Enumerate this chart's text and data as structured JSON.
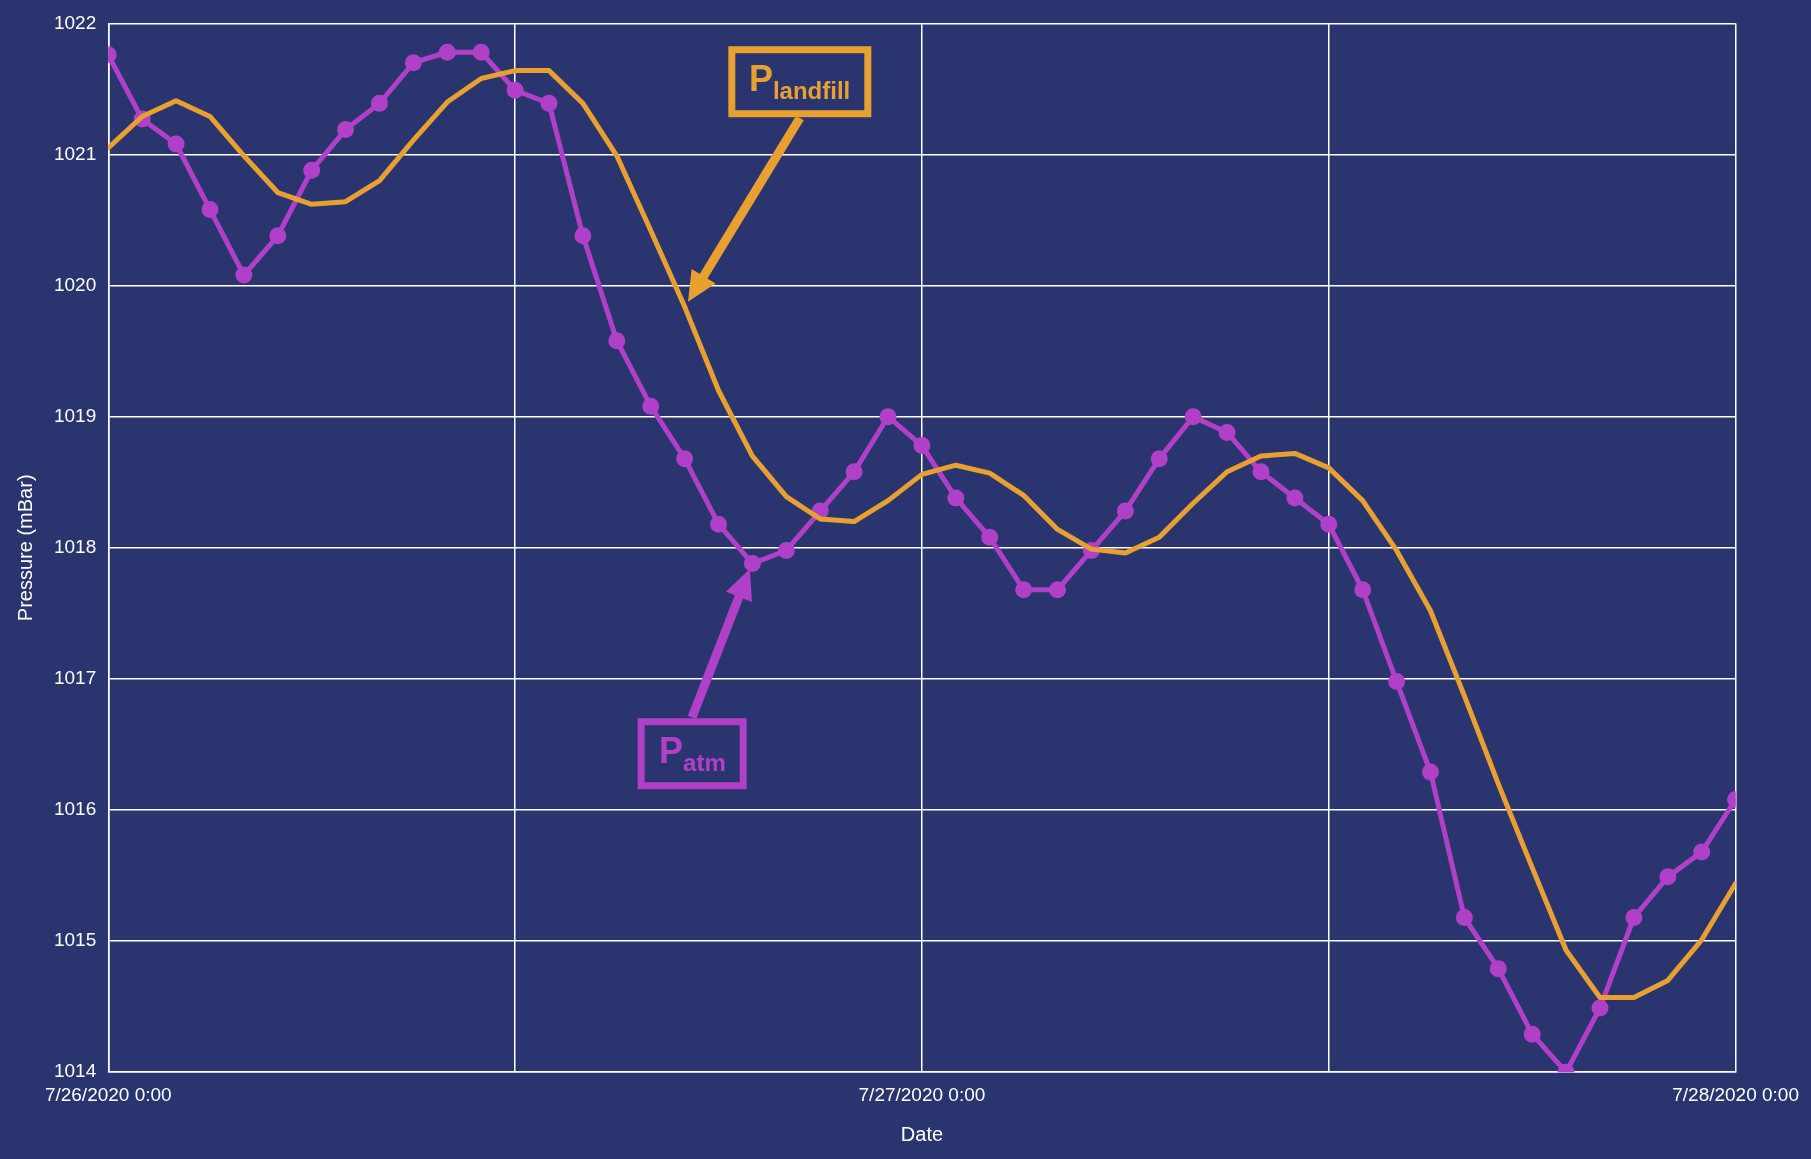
{
  "chart_data": {
    "type": "line",
    "xlabel": "Date",
    "ylabel": "Pressure (mBar)",
    "xlim": [
      "2020-07-26T00:00",
      "2020-07-28T00:00"
    ],
    "xticks": [
      {
        "value": "2020-07-26T00:00",
        "label": "7/26/2020 0:00"
      },
      {
        "value": "2020-07-26T12:00",
        "label": null
      },
      {
        "value": "2020-07-27T00:00",
        "label": "7/27/2020 0:00"
      },
      {
        "value": "2020-07-27T12:00",
        "label": null
      },
      {
        "value": "2020-07-28T00:00",
        "label": "7/28/2020 0:00"
      }
    ],
    "ylim": [
      1014,
      1022
    ],
    "yticks": [
      1014,
      1015,
      1016,
      1017,
      1018,
      1019,
      1020,
      1021,
      1022
    ],
    "grid": true,
    "legend": false,
    "x": [
      "2020-07-26T00:00",
      "2020-07-26T01:00",
      "2020-07-26T02:00",
      "2020-07-26T03:00",
      "2020-07-26T04:00",
      "2020-07-26T05:00",
      "2020-07-26T06:00",
      "2020-07-26T07:00",
      "2020-07-26T08:00",
      "2020-07-26T09:00",
      "2020-07-26T10:00",
      "2020-07-26T11:00",
      "2020-07-26T12:00",
      "2020-07-26T13:00",
      "2020-07-26T14:00",
      "2020-07-26T15:00",
      "2020-07-26T16:00",
      "2020-07-26T17:00",
      "2020-07-26T18:00",
      "2020-07-26T19:00",
      "2020-07-26T20:00",
      "2020-07-26T21:00",
      "2020-07-26T22:00",
      "2020-07-26T23:00",
      "2020-07-27T00:00",
      "2020-07-27T01:00",
      "2020-07-27T02:00",
      "2020-07-27T03:00",
      "2020-07-27T04:00",
      "2020-07-27T05:00",
      "2020-07-27T06:00",
      "2020-07-27T07:00",
      "2020-07-27T08:00",
      "2020-07-27T09:00",
      "2020-07-27T10:00",
      "2020-07-27T11:00",
      "2020-07-27T12:00",
      "2020-07-27T13:00",
      "2020-07-27T14:00",
      "2020-07-27T15:00",
      "2020-07-27T16:00",
      "2020-07-27T17:00",
      "2020-07-27T18:00",
      "2020-07-27T19:00",
      "2020-07-27T20:00",
      "2020-07-27T21:00",
      "2020-07-27T22:00",
      "2020-07-27T23:00",
      "2020-07-28T00:00"
    ],
    "series": [
      {
        "name": "P$_{landfill}$",
        "color": "#e8a030",
        "marker": "none",
        "values": [
          1021.05,
          1021.29,
          1021.41,
          1021.29,
          1020.99,
          1020.71,
          1020.62,
          1020.64,
          1020.8,
          1021.11,
          1021.4,
          1021.58,
          1021.64,
          1021.64,
          1021.39,
          1020.99,
          1020.42,
          1019.84,
          1019.2,
          1018.7,
          1018.39,
          1018.22,
          1018.2,
          1018.36,
          1018.56,
          1018.63,
          1018.57,
          1018.4,
          1018.14,
          1017.99,
          1017.96,
          1018.08,
          1018.34,
          1018.58,
          1018.7,
          1018.72,
          1018.61,
          1018.36,
          1017.98,
          1017.52,
          1016.87,
          1016.2,
          1015.56,
          1014.93,
          1014.57,
          1014.57,
          1014.7,
          1015.01,
          1015.44
        ]
      },
      {
        "name": "P$_{atm}$",
        "color": "#b040c8",
        "marker": "circle",
        "values": [
          1021.76,
          1021.27,
          1021.08,
          1020.58,
          1020.08,
          1020.38,
          1020.88,
          1021.19,
          1021.39,
          1021.7,
          1021.78,
          1021.78,
          1021.49,
          1021.39,
          1020.38,
          1019.58,
          1019.08,
          1018.68,
          1018.18,
          1017.88,
          1017.98,
          1018.28,
          1018.58,
          1019.0,
          1018.78,
          1018.38,
          1018.08,
          1017.68,
          1017.68,
          1017.98,
          1018.28,
          1018.68,
          1019.0,
          1018.88,
          1018.58,
          1018.38,
          1018.18,
          1017.68,
          1016.98,
          1016.29,
          1015.18,
          1014.79,
          1014.29,
          1014.0,
          1014.49,
          1015.18,
          1015.49,
          1015.68,
          1016.08
        ]
      }
    ]
  }
}
